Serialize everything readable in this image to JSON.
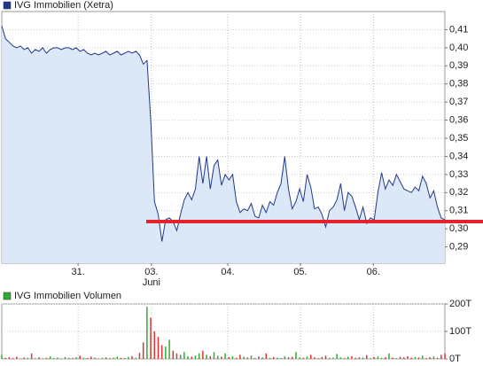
{
  "chart_data": [
    {
      "type": "area",
      "title": "IVG Immobilien (Xetra)",
      "color": "#1f3a8a",
      "fill": "#dce8f8",
      "legend": "top-left",
      "grid": true,
      "values": [
        0.412,
        0.405,
        0.403,
        0.401,
        0.4,
        0.401,
        0.399,
        0.4,
        0.397,
        0.399,
        0.398,
        0.4,
        0.397,
        0.399,
        0.4,
        0.4,
        0.399,
        0.4,
        0.4,
        0.399,
        0.4,
        0.398,
        0.399,
        0.397,
        0.396,
        0.397,
        0.396,
        0.397,
        0.398,
        0.396,
        0.397,
        0.398,
        0.396,
        0.397,
        0.398,
        0.397,
        0.398,
        0.396,
        0.391,
        0.393,
        0.36,
        0.315,
        0.308,
        0.293,
        0.305,
        0.306,
        0.304,
        0.299,
        0.308,
        0.316,
        0.32,
        0.316,
        0.322,
        0.34,
        0.325,
        0.34,
        0.322,
        0.335,
        0.338,
        0.324,
        0.33,
        0.327,
        0.33,
        0.315,
        0.309,
        0.311,
        0.31,
        0.314,
        0.307,
        0.306,
        0.313,
        0.309,
        0.315,
        0.313,
        0.32,
        0.325,
        0.34,
        0.322,
        0.311,
        0.315,
        0.322,
        0.315,
        0.33,
        0.323,
        0.311,
        0.312,
        0.308,
        0.301,
        0.31,
        0.312,
        0.316,
        0.325,
        0.31,
        0.32,
        0.318,
        0.312,
        0.305,
        0.312,
        0.303,
        0.306,
        0.305,
        0.32,
        0.331,
        0.322,
        0.327,
        0.324,
        0.33,
        0.326,
        0.322,
        0.321,
        0.32,
        0.323,
        0.321,
        0.329,
        0.325,
        0.317,
        0.321,
        0.312,
        0.306,
        0.305
      ],
      "xlim": [
        0,
        119
      ],
      "xticks": [
        {
          "value": 20.5,
          "label": "31."
        },
        {
          "value": 40.2,
          "label": "03."
        },
        {
          "value": 60.7,
          "label": "04."
        },
        {
          "value": 80.2,
          "label": "05."
        },
        {
          "value": 99.8,
          "label": "06."
        }
      ],
      "x_sublabel": "Juni",
      "ylim": [
        0.281,
        0.42
      ],
      "yticks": [
        {
          "value": 0.29,
          "label": "0,29"
        },
        {
          "value": 0.3,
          "label": "0,30"
        },
        {
          "value": 0.31,
          "label": "0,31"
        },
        {
          "value": 0.32,
          "label": "0,32"
        },
        {
          "value": 0.33,
          "label": "0,33"
        },
        {
          "value": 0.34,
          "label": "0,34"
        },
        {
          "value": 0.35,
          "label": "0,35"
        },
        {
          "value": 0.36,
          "label": "0,36"
        },
        {
          "value": 0.37,
          "label": "0,37"
        },
        {
          "value": 0.38,
          "label": "0,38"
        },
        {
          "value": 0.39,
          "label": "0,39"
        },
        {
          "value": 0.4,
          "label": "0,40"
        },
        {
          "value": 0.41,
          "label": "0,41"
        }
      ],
      "support_line": {
        "y": 0.304,
        "x_start": 38.8,
        "color": "#e3232c"
      }
    },
    {
      "type": "volume",
      "title": "IVG Immobilien Volumen",
      "legend_color": "#33aa33",
      "up_color": "#33aa33",
      "down_color": "#dd3333",
      "grid": true,
      "values": [
        15000,
        4000,
        6000,
        3000,
        8000,
        2000,
        5000,
        4000,
        20000,
        3000,
        6000,
        2000,
        4000,
        9000,
        3000,
        5000,
        2000,
        7000,
        4000,
        3000,
        6000,
        12000,
        4000,
        3000,
        8000,
        5000,
        2000,
        4000,
        6000,
        3000,
        5000,
        9000,
        4000,
        3000,
        7000,
        10000,
        4000,
        22000,
        60000,
        190000,
        150000,
        100000,
        80000,
        50000,
        45000,
        70000,
        30000,
        20000,
        15000,
        25000,
        10000,
        8000,
        12000,
        20000,
        30000,
        15000,
        10000,
        25000,
        12000,
        8000,
        20000,
        6000,
        10000,
        4000,
        15000,
        8000,
        5000,
        12000,
        3000,
        9000,
        6000,
        20000,
        4000,
        7000,
        5000,
        3000,
        10000,
        6000,
        8000,
        25000,
        5000,
        4000,
        9000,
        15000,
        6000,
        3000,
        7000,
        12000,
        4000,
        5000,
        18000,
        6000,
        3000,
        8000,
        10000,
        4000,
        6000,
        5000,
        14000,
        3000,
        7000,
        9000,
        4000,
        6000,
        20000,
        5000,
        3000,
        8000,
        6000,
        10000,
        4000,
        7000,
        5000,
        12000,
        3000,
        6000,
        9000,
        4000,
        15000,
        20000
      ],
      "xlim": [
        0,
        119
      ],
      "ylim": [
        0,
        200000
      ],
      "yticks": [
        {
          "value": 0,
          "label": "0T"
        },
        {
          "value": 100000,
          "label": "100T"
        },
        {
          "value": 200000,
          "label": "200T"
        }
      ]
    }
  ]
}
